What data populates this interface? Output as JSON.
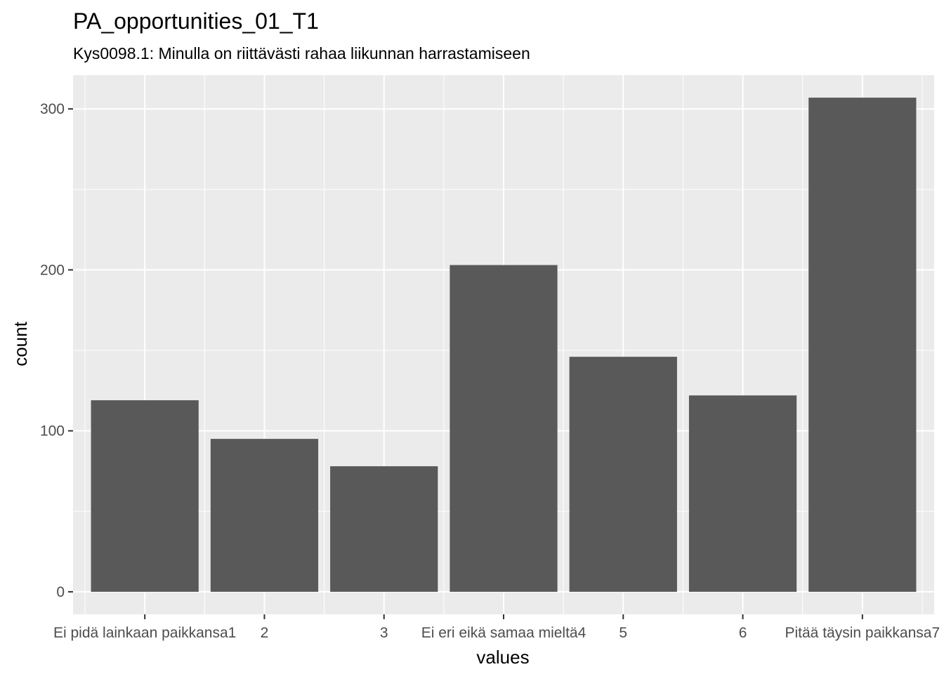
{
  "chart_data": {
    "type": "bar",
    "title": "PA_opportunities_01_T1",
    "subtitle": "Kys0098.1: Minulla on riittävästi rahaa liikunnan harrastamiseen",
    "xlabel": "values",
    "ylabel": "count",
    "categories": [
      "Ei pidä lainkaan paikkansa1",
      "2",
      "3",
      "Ei eri eikä samaa mieltä4",
      "5",
      "6",
      "Pitää täysin paikkansa7"
    ],
    "values": [
      119,
      95,
      78,
      203,
      146,
      122,
      307
    ],
    "ylim": [
      -14,
      321
    ],
    "yticks": [
      0,
      100,
      200,
      300
    ],
    "yticks_minor": [
      50,
      150,
      250
    ],
    "grid": true,
    "colors": {
      "panel_background": "#ebebeb",
      "grid": "#ffffff",
      "bar": "#595959",
      "tick_text": "#4d4d4d",
      "tick_mark": "#333333"
    }
  }
}
